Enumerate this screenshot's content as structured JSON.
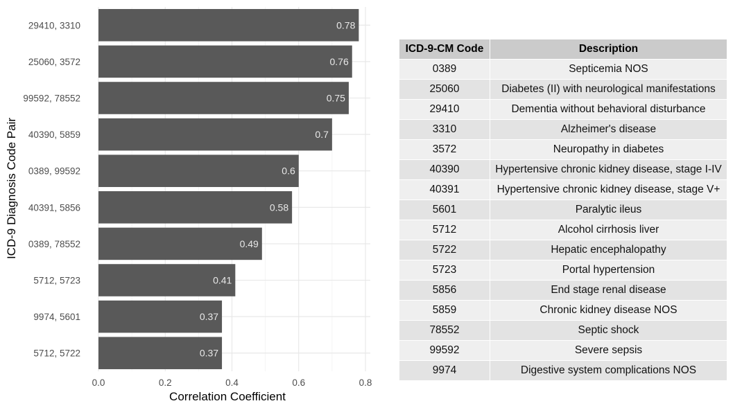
{
  "chart_data": {
    "type": "bar",
    "orientation": "horizontal",
    "xlabel": "Correlation Coefficient",
    "ylabel": "ICD-9 Diagnosis Code Pair",
    "xlim": [
      0,
      0.8
    ],
    "xticks": [
      "0.0",
      "0.2",
      "0.4",
      "0.6",
      "0.8"
    ],
    "grid": true,
    "bar_color": "#595959",
    "label_color": "#e8e8e8",
    "categories": [
      "29410, 3310",
      "25060, 3572",
      "99592, 78552",
      "40390, 5859",
      "0389, 99592",
      "40391, 5856",
      "0389, 78552",
      "5712, 5723",
      "9974, 5601",
      "5712, 5722"
    ],
    "values": [
      0.78,
      0.76,
      0.75,
      0.7,
      0.6,
      0.58,
      0.49,
      0.41,
      0.37,
      0.37
    ],
    "value_labels": [
      "0.78",
      "0.76",
      "0.75",
      "0.7",
      "0.6",
      "0.58",
      "0.49",
      "0.41",
      "0.37",
      "0.37"
    ]
  },
  "table": {
    "headers": [
      "ICD-9-CM Code",
      "Description"
    ],
    "header_color": "#cbcbcb",
    "rows": [
      [
        "0389",
        "Septicemia NOS"
      ],
      [
        "25060",
        "Diabetes (II) with neurological manifestations"
      ],
      [
        "29410",
        "Dementia without behavioral disturbance"
      ],
      [
        "3310",
        "Alzheimer's disease"
      ],
      [
        "3572",
        "Neuropathy in diabetes"
      ],
      [
        "40390",
        "Hypertensive chronic kidney disease, stage I-IV"
      ],
      [
        "40391",
        "Hypertensive chronic kidney disease, stage V+"
      ],
      [
        "5601",
        "Paralytic ileus"
      ],
      [
        "5712",
        "Alcohol cirrhosis liver"
      ],
      [
        "5722",
        "Hepatic encephalopathy"
      ],
      [
        "5723",
        "Portal hypertension"
      ],
      [
        "5856",
        "End stage renal disease"
      ],
      [
        "5859",
        "Chronic kidney disease NOS"
      ],
      [
        "78552",
        "Septic shock"
      ],
      [
        "99592",
        "Severe sepsis"
      ],
      [
        "9974",
        "Digestive system complications NOS"
      ]
    ]
  }
}
